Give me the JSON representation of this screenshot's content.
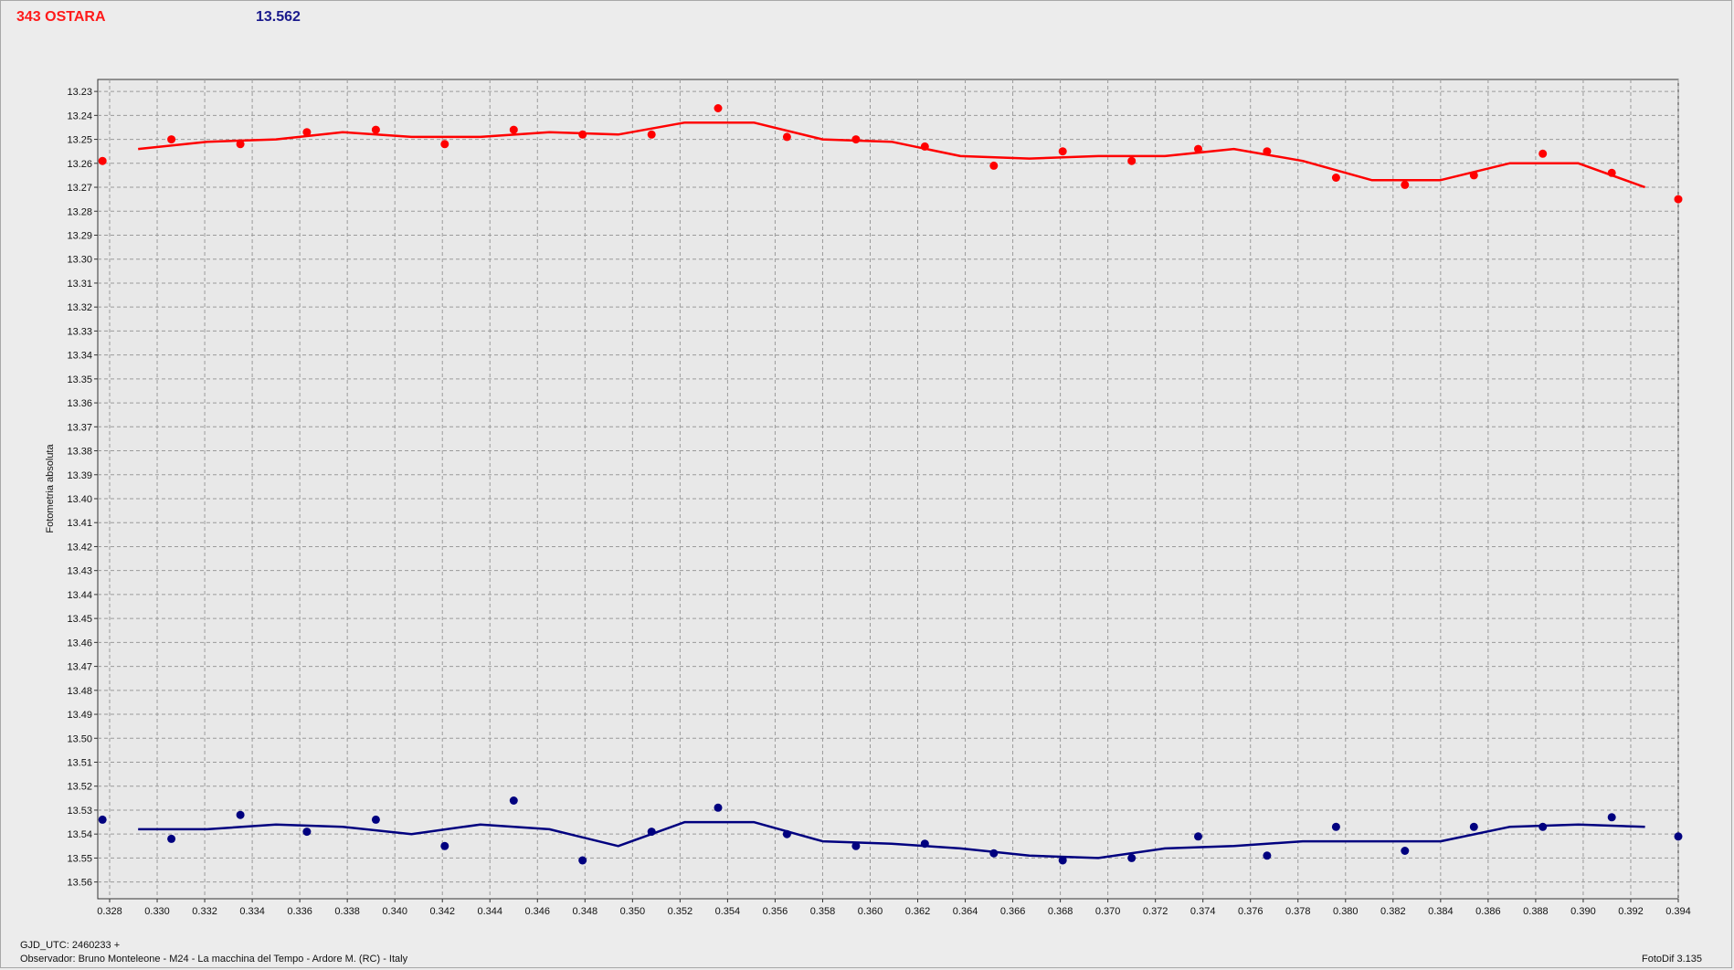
{
  "header": {
    "object_name": "343 OSTARA",
    "comparison_value": "13.562"
  },
  "footer": {
    "gjd": "GJD_UTC: 2460233 +",
    "observer": "Observador: Bruno Monteleone - M24 - La macchina del Tempo - Ardore M. (RC) - Italy",
    "version": "FotoDif 3.135"
  },
  "colors": {
    "series_1": "#ff0000",
    "series_2": "#00007f",
    "plot_background": "#e8e8e8",
    "grid": "#9a9a9a"
  },
  "chart_data": {
    "type": "scatter",
    "ylabel": "Fotometria absoluta",
    "xlabel": "",
    "xlim": [
      0.3275,
      0.394
    ],
    "ylim": [
      13.225,
      13.567
    ],
    "y_inverted": true,
    "grid": true,
    "x_ticks": [
      "0.328",
      "0.330",
      "0.332",
      "0.334",
      "0.336",
      "0.338",
      "0.340",
      "0.342",
      "0.344",
      "0.346",
      "0.348",
      "0.350",
      "0.352",
      "0.354",
      "0.356",
      "0.358",
      "0.360",
      "0.362",
      "0.364",
      "0.366",
      "0.368",
      "0.370",
      "0.372",
      "0.374",
      "0.376",
      "0.378",
      "0.380",
      "0.382",
      "0.384",
      "0.386",
      "0.388",
      "0.390",
      "0.392",
      "0.394"
    ],
    "y_ticks": [
      "13.23",
      "13.24",
      "13.25",
      "13.26",
      "13.27",
      "13.28",
      "13.29",
      "13.30",
      "13.31",
      "13.32",
      "13.33",
      "13.34",
      "13.35",
      "13.36",
      "13.37",
      "13.38",
      "13.39",
      "13.40",
      "13.41",
      "13.42",
      "13.43",
      "13.44",
      "13.45",
      "13.46",
      "13.47",
      "13.48",
      "13.49",
      "13.50",
      "13.51",
      "13.52",
      "13.53",
      "13.54",
      "13.55",
      "13.56"
    ],
    "series": [
      {
        "color": "#ff0000",
        "points": [
          [
            0.3277,
            13.259
          ],
          [
            0.3306,
            13.25
          ],
          [
            0.3335,
            13.252
          ],
          [
            0.3363,
            13.247
          ],
          [
            0.3392,
            13.246
          ],
          [
            0.3421,
            13.252
          ],
          [
            0.345,
            13.246
          ],
          [
            0.3479,
            13.248
          ],
          [
            0.3508,
            13.248
          ],
          [
            0.3536,
            13.237
          ],
          [
            0.3565,
            13.249
          ],
          [
            0.3594,
            13.25
          ],
          [
            0.3623,
            13.253
          ],
          [
            0.3652,
            13.261
          ],
          [
            0.3681,
            13.255
          ],
          [
            0.371,
            13.259
          ],
          [
            0.3738,
            13.254
          ],
          [
            0.3767,
            13.255
          ],
          [
            0.3796,
            13.266
          ],
          [
            0.3825,
            13.269
          ],
          [
            0.3854,
            13.265
          ],
          [
            0.3883,
            13.256
          ],
          [
            0.3912,
            13.264
          ],
          [
            0.394,
            13.275
          ]
        ],
        "fit": [
          [
            0.3292,
            13.254
          ],
          [
            0.3321,
            13.251
          ],
          [
            0.335,
            13.25
          ],
          [
            0.3378,
            13.247
          ],
          [
            0.3407,
            13.249
          ],
          [
            0.3436,
            13.249
          ],
          [
            0.3465,
            13.247
          ],
          [
            0.3494,
            13.248
          ],
          [
            0.3522,
            13.243
          ],
          [
            0.3551,
            13.243
          ],
          [
            0.358,
            13.25
          ],
          [
            0.3609,
            13.251
          ],
          [
            0.3638,
            13.257
          ],
          [
            0.3667,
            13.258
          ],
          [
            0.3696,
            13.257
          ],
          [
            0.3724,
            13.257
          ],
          [
            0.3753,
            13.254
          ],
          [
            0.3782,
            13.259
          ],
          [
            0.3811,
            13.267
          ],
          [
            0.384,
            13.267
          ],
          [
            0.3869,
            13.26
          ],
          [
            0.3898,
            13.26
          ],
          [
            0.3926,
            13.27
          ]
        ]
      },
      {
        "color": "#00007f",
        "points": [
          [
            0.3277,
            13.534
          ],
          [
            0.3306,
            13.542
          ],
          [
            0.3335,
            13.532
          ],
          [
            0.3363,
            13.539
          ],
          [
            0.3392,
            13.534
          ],
          [
            0.3421,
            13.545
          ],
          [
            0.345,
            13.526
          ],
          [
            0.3479,
            13.551
          ],
          [
            0.3508,
            13.539
          ],
          [
            0.3536,
            13.529
          ],
          [
            0.3565,
            13.54
          ],
          [
            0.3594,
            13.545
          ],
          [
            0.3623,
            13.544
          ],
          [
            0.3652,
            13.548
          ],
          [
            0.3681,
            13.551
          ],
          [
            0.371,
            13.55
          ],
          [
            0.3738,
            13.541
          ],
          [
            0.3767,
            13.549
          ],
          [
            0.3796,
            13.537
          ],
          [
            0.3825,
            13.547
          ],
          [
            0.3854,
            13.537
          ],
          [
            0.3883,
            13.537
          ],
          [
            0.3912,
            13.533
          ],
          [
            0.394,
            13.541
          ]
        ],
        "fit": [
          [
            0.3292,
            13.538
          ],
          [
            0.3321,
            13.538
          ],
          [
            0.335,
            13.536
          ],
          [
            0.3378,
            13.537
          ],
          [
            0.3407,
            13.54
          ],
          [
            0.3436,
            13.536
          ],
          [
            0.3465,
            13.538
          ],
          [
            0.3494,
            13.545
          ],
          [
            0.3522,
            13.535
          ],
          [
            0.3551,
            13.535
          ],
          [
            0.358,
            13.543
          ],
          [
            0.3609,
            13.544
          ],
          [
            0.3638,
            13.546
          ],
          [
            0.3667,
            13.549
          ],
          [
            0.3696,
            13.55
          ],
          [
            0.3724,
            13.546
          ],
          [
            0.3753,
            13.545
          ],
          [
            0.3782,
            13.543
          ],
          [
            0.3811,
            13.543
          ],
          [
            0.384,
            13.543
          ],
          [
            0.3869,
            13.537
          ],
          [
            0.3898,
            13.536
          ],
          [
            0.3926,
            13.537
          ]
        ]
      }
    ]
  }
}
